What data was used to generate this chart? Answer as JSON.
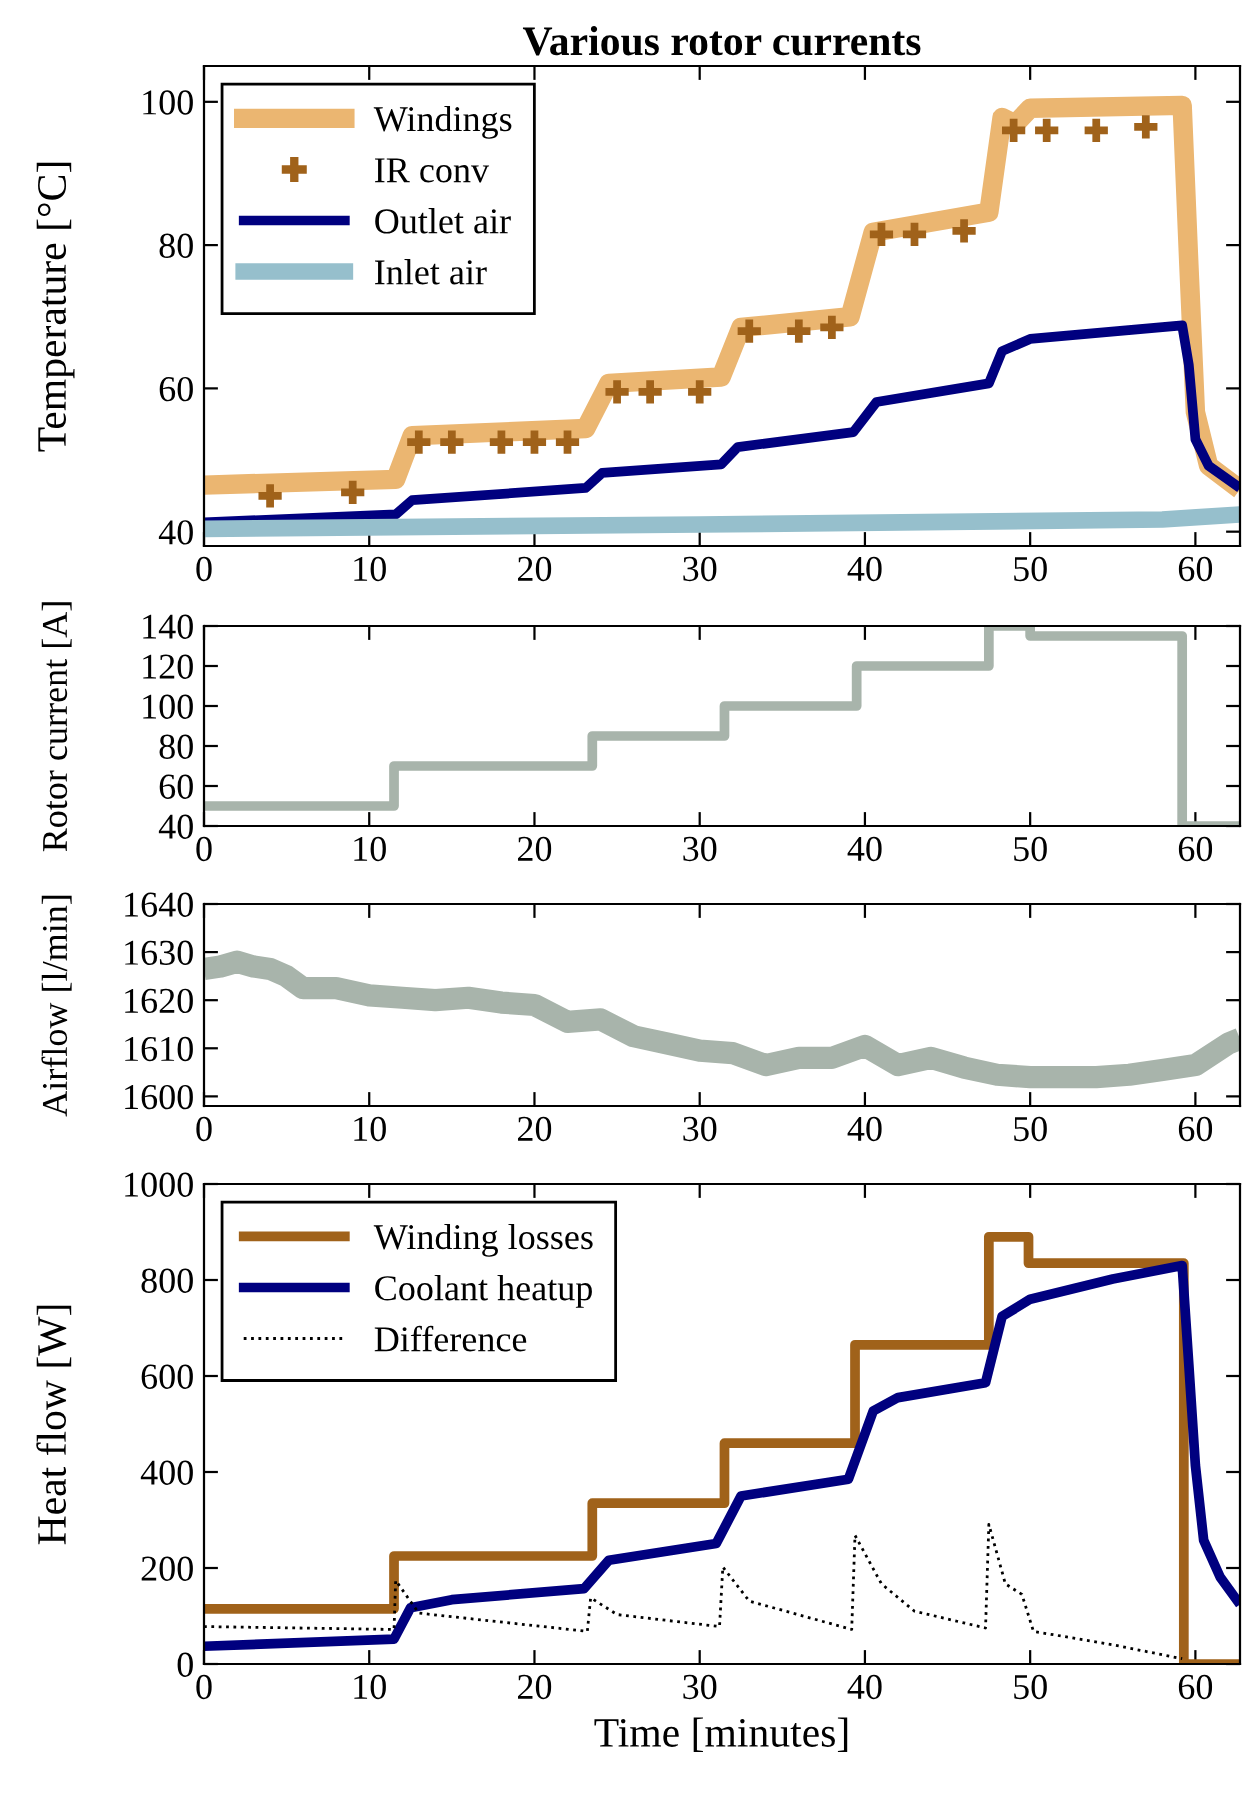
{
  "chart_data": [
    {
      "type": "line",
      "title": "Various rotor currents",
      "ylabel": "Temperature [°C]",
      "xlim": [
        0,
        62.7
      ],
      "xticks": [
        0,
        10,
        20,
        30,
        40,
        50,
        60
      ],
      "ylim": [
        38,
        105
      ],
      "yticks": [
        40,
        60,
        80,
        100
      ],
      "grid": false,
      "legend": "top left",
      "series": [
        {
          "name": "Windings",
          "color": "#ebb671",
          "x": [
            0,
            11.6,
            12.6,
            23.1,
            24.5,
            31.3,
            32.5,
            39.1,
            40.5,
            47.5,
            48.3,
            49.1,
            50,
            59.2,
            59.6,
            60,
            60.8,
            62.7
          ],
          "values": [
            46.5,
            47.3,
            53.4,
            54.4,
            60.7,
            61.6,
            68.5,
            70,
            81.8,
            84.6,
            97.8,
            96.9,
            99.1,
            99.5,
            77.5,
            56.7,
            49.2,
            45.9
          ]
        },
        {
          "name": "IR conv",
          "type": "scatter",
          "marker": "cross",
          "color": "#a0621a",
          "x": [
            4,
            9,
            13,
            15,
            18,
            20,
            22,
            25,
            27,
            30,
            33,
            36,
            38,
            41,
            43,
            46,
            49,
            51,
            54,
            57
          ],
          "values": [
            45,
            45.5,
            52.5,
            52.5,
            52.5,
            52.5,
            52.5,
            59.5,
            59.5,
            59.5,
            68,
            68,
            68.5,
            81.5,
            81.5,
            82,
            96,
            96,
            96,
            96.5
          ]
        },
        {
          "name": "Outlet air",
          "color": "#00007f",
          "x": [
            0,
            11.6,
            12.6,
            23.1,
            24.1,
            31.3,
            32.3,
            39.3,
            40.7,
            47.5,
            48.3,
            50,
            59.2,
            59.6,
            60,
            60.8,
            62.7
          ],
          "values": [
            41.3,
            42.4,
            44.4,
            46.1,
            48.2,
            49.4,
            51.8,
            53.9,
            58.1,
            60.7,
            65.2,
            66.9,
            68.8,
            63.3,
            52.9,
            49.2,
            46.1
          ]
        },
        {
          "name": "Inlet air",
          "color": "#96bfcc",
          "x": [
            0,
            30,
            58,
            62.7
          ],
          "values": [
            40.4,
            41,
            41.7,
            42.4
          ]
        }
      ]
    },
    {
      "type": "step",
      "ylabel": "Rotor current [A]",
      "xlim": [
        0,
        62.7
      ],
      "xticks": [
        0,
        10,
        20,
        30,
        40,
        50,
        60
      ],
      "ylim": [
        40,
        140
      ],
      "yticks": [
        40,
        60,
        80,
        100,
        120,
        140
      ],
      "grid": false,
      "legend": false,
      "series": [
        {
          "color": "#a8b4ab",
          "x": [
            0,
            11.5,
            23.5,
            31.5,
            39.5,
            47.5,
            50,
            59.2,
            62.7
          ],
          "values": [
            50,
            70,
            85,
            100,
            120,
            140,
            135,
            40,
            40
          ]
        }
      ]
    },
    {
      "type": "line",
      "ylabel": "Airflow [l/min]",
      "xlim": [
        0,
        62.7
      ],
      "xticks": [
        0,
        10,
        20,
        30,
        40,
        50,
        60
      ],
      "ylim": [
        1598,
        1640
      ],
      "yticks": [
        1600,
        1610,
        1620,
        1630,
        1640
      ],
      "grid": false,
      "legend": false,
      "series": [
        {
          "color": "#a8b4ab",
          "x": [
            0,
            1,
            2,
            3,
            4,
            5,
            6,
            8,
            10,
            12,
            14,
            16,
            18,
            20,
            22,
            24,
            26,
            28,
            30,
            32,
            34,
            36,
            38,
            40,
            42,
            44,
            46,
            48,
            50,
            52,
            54,
            56,
            58,
            60,
            62,
            62.7
          ],
          "values": [
            1626.5,
            1627,
            1628,
            1627,
            1626.5,
            1625,
            1622.5,
            1622.5,
            1621,
            1620.5,
            1620,
            1620.5,
            1619.5,
            1619,
            1615.5,
            1616,
            1612.5,
            1611,
            1609.5,
            1609,
            1606.5,
            1608,
            1608,
            1610.5,
            1606.5,
            1608,
            1606,
            1604.5,
            1604,
            1604,
            1604,
            1604.5,
            1605.5,
            1606.5,
            1611,
            1612
          ]
        }
      ]
    },
    {
      "type": "line",
      "xlabel": "Time [minutes]",
      "ylabel": "Heat flow [W]",
      "xlim": [
        0,
        62.7
      ],
      "xticks": [
        0,
        10,
        20,
        30,
        40,
        50,
        60
      ],
      "ylim": [
        0,
        1000
      ],
      "yticks": [
        0,
        200,
        400,
        600,
        800,
        1000
      ],
      "grid": false,
      "legend": "top left",
      "series": [
        {
          "name": "Winding losses",
          "type": "step",
          "color": "#a0621a",
          "x": [
            0,
            11.5,
            23.5,
            31.5,
            39.4,
            47.5,
            49.9,
            59.3,
            62.7
          ],
          "values": [
            115,
            225,
            335,
            460,
            665,
            890,
            835,
            0,
            0
          ]
        },
        {
          "name": "Coolant heatup",
          "color": "#00007f",
          "x": [
            0,
            11.5,
            12.5,
            15,
            23,
            24.5,
            31,
            32.5,
            39,
            40.5,
            42,
            47.3,
            48.3,
            50,
            55,
            59.2,
            59.6,
            60,
            60.5,
            61.5,
            62.7
          ],
          "values": [
            37,
            52,
            117,
            134,
            157,
            216,
            251,
            350,
            385,
            527,
            555,
            586,
            724,
            760,
            802,
            830,
            625,
            414,
            258,
            181,
            124
          ]
        },
        {
          "name": "Difference",
          "line_style": "dotted",
          "color": "#000000",
          "x": [
            0,
            11.5,
            11.6,
            13,
            23.2,
            23.4,
            25,
            31.2,
            31.4,
            33,
            39.2,
            39.4,
            41,
            43,
            47.3,
            47.5,
            48.5,
            49.5,
            50.2,
            55,
            59.2
          ],
          "values": [
            78,
            72,
            174,
            106,
            68,
            138,
            103,
            78,
            202,
            131,
            72,
            268,
            167,
            110,
            75,
            291,
            167,
            145,
            68,
            40,
            11
          ]
        }
      ]
    }
  ]
}
